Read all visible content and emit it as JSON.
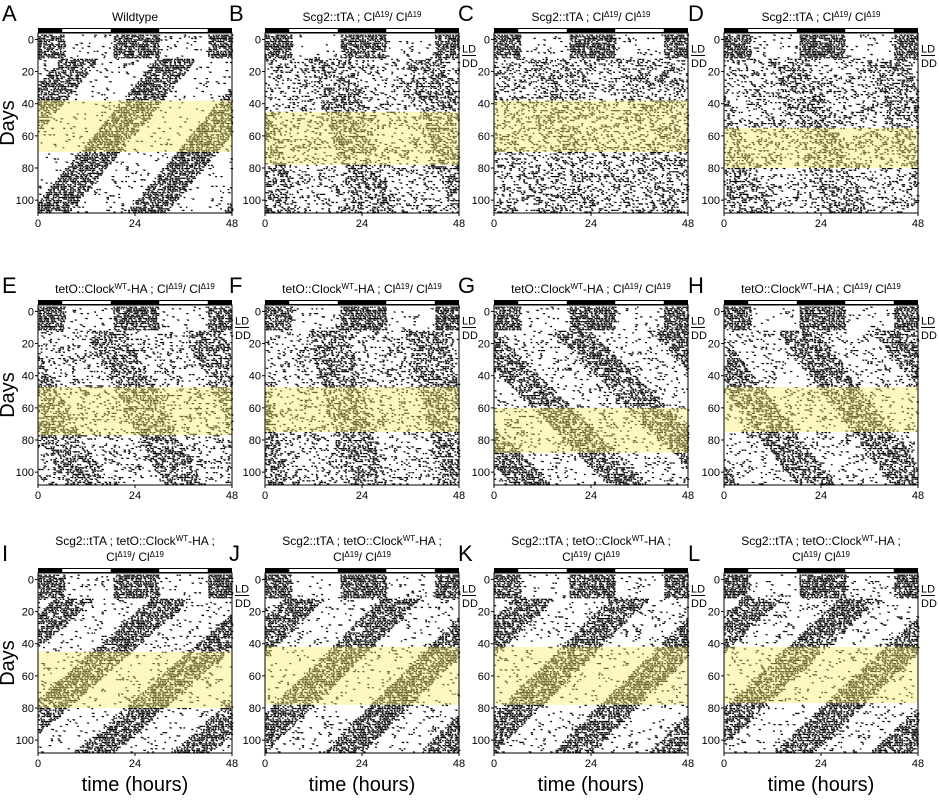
{
  "axes": {
    "y_label": "Days",
    "x_label": "time (hours)",
    "yticks": [
      0,
      20,
      40,
      60,
      80,
      100
    ],
    "xticks": [
      0,
      24,
      48
    ],
    "ylim": [
      -4,
      108
    ],
    "xlim": [
      0,
      48
    ],
    "ld": "LD",
    "dd": "DD"
  },
  "panels": [
    {
      "letter": "A",
      "title": [
        [
          {
            "t": "Wildtype"
          }
        ]
      ],
      "band": [
        38,
        70
      ],
      "ld_label": false
    },
    {
      "letter": "B",
      "title": [
        [
          {
            "t": "Scg2::tTA ;  Cl"
          },
          {
            "sup": "Δ19"
          },
          {
            "t": "/ Cl"
          },
          {
            "sup": "Δ19"
          }
        ]
      ],
      "band": [
        45,
        78
      ],
      "ld_label": true
    },
    {
      "letter": "C",
      "title": [
        [
          {
            "t": "Scg2::tTA ;  Cl"
          },
          {
            "sup": "Δ19"
          },
          {
            "t": "/ Cl"
          },
          {
            "sup": "Δ19"
          }
        ]
      ],
      "band": [
        38,
        70
      ],
      "ld_label": true
    },
    {
      "letter": "D",
      "title": [
        [
          {
            "t": "Scg2::tTA ;  Cl"
          },
          {
            "sup": "Δ19"
          },
          {
            "t": "/ Cl"
          },
          {
            "sup": "Δ19"
          }
        ]
      ],
      "band": [
        55,
        80
      ],
      "ld_label": true
    },
    {
      "letter": "E",
      "title": [
        [
          {
            "t": "tetO::Clock"
          },
          {
            "sup": "WT"
          },
          {
            "t": "-HA ; Cl"
          },
          {
            "sup": "Δ19"
          },
          {
            "t": "/ Cl"
          },
          {
            "sup": "Δ19"
          }
        ]
      ],
      "band": [
        47,
        77
      ],
      "ld_label": true
    },
    {
      "letter": "F",
      "title": [
        [
          {
            "t": "tetO::Clock"
          },
          {
            "sup": "WT"
          },
          {
            "t": "-HA ; Cl"
          },
          {
            "sup": "Δ19"
          },
          {
            "t": "/ Cl"
          },
          {
            "sup": "Δ19"
          }
        ]
      ],
      "band": [
        47,
        75
      ],
      "ld_label": true
    },
    {
      "letter": "G",
      "title": [
        [
          {
            "t": "tetO::Clock"
          },
          {
            "sup": "WT"
          },
          {
            "t": "-HA ; Cl"
          },
          {
            "sup": "Δ19"
          },
          {
            "t": "/ Cl"
          },
          {
            "sup": "Δ19"
          }
        ]
      ],
      "band": [
        60,
        88
      ],
      "ld_label": true
    },
    {
      "letter": "H",
      "title": [
        [
          {
            "t": "tetO::Clock"
          },
          {
            "sup": "WT"
          },
          {
            "t": "-HA ; Cl"
          },
          {
            "sup": "Δ19"
          },
          {
            "t": "/ Cl"
          },
          {
            "sup": "Δ19"
          }
        ]
      ],
      "band": [
        47,
        75
      ],
      "ld_label": true
    },
    {
      "letter": "I",
      "title": [
        [
          {
            "t": "Scg2::tTA ; tetO::Clock"
          },
          {
            "sup": "WT"
          },
          {
            "t": "-HA ;"
          }
        ],
        [
          {
            "t": "Cl"
          },
          {
            "sup": "Δ19"
          },
          {
            "t": "/ Cl"
          },
          {
            "sup": "Δ19"
          }
        ]
      ],
      "band": [
        45,
        80
      ],
      "ld_label": true
    },
    {
      "letter": "J",
      "title": [
        [
          {
            "t": "Scg2::tTA ; tetO::Clock"
          },
          {
            "sup": "WT"
          },
          {
            "t": "-HA ;"
          }
        ],
        [
          {
            "t": "Cl"
          },
          {
            "sup": "Δ19"
          },
          {
            "t": "/ Cl"
          },
          {
            "sup": "Δ19"
          }
        ]
      ],
      "band": [
        42,
        78
      ],
      "ld_label": true
    },
    {
      "letter": "K",
      "title": [
        [
          {
            "t": "Scg2::tTA ; tetO::Clock"
          },
          {
            "sup": "WT"
          },
          {
            "t": "-HA ;"
          }
        ],
        [
          {
            "t": "Cl"
          },
          {
            "sup": "Δ19"
          },
          {
            "t": "/ Cl"
          },
          {
            "sup": "Δ19"
          }
        ]
      ],
      "band": [
        42,
        78
      ],
      "ld_label": true
    },
    {
      "letter": "L",
      "title": [
        [
          {
            "t": "Scg2::tTA ; tetO::Clock"
          },
          {
            "sup": "WT"
          },
          {
            "t": "-HA ;"
          }
        ],
        [
          {
            "t": "Cl"
          },
          {
            "sup": "Δ19"
          },
          {
            "t": "/ Cl"
          },
          {
            "sup": "Δ19"
          }
        ]
      ],
      "band": [
        42,
        77
      ],
      "ld_label": true
    }
  ]
}
